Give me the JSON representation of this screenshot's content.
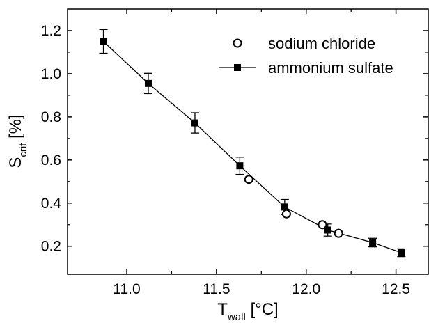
{
  "chart_data": {
    "type": "scatter",
    "xlabel": {
      "main": "T",
      "sub": "wall",
      "unit": " [°C]"
    },
    "ylabel": {
      "main": "S",
      "sub": "crit",
      "unit": " [%]"
    },
    "xlim": [
      10.67,
      12.68
    ],
    "ylim": [
      0.07,
      1.3
    ],
    "x_ticks": [
      {
        "value": 11.0,
        "label": "11.0"
      },
      {
        "value": 11.5,
        "label": "11.5"
      },
      {
        "value": 12.0,
        "label": "12.0"
      },
      {
        "value": 12.5,
        "label": "12.5"
      }
    ],
    "y_ticks": [
      {
        "value": 0.2,
        "label": "0.2"
      },
      {
        "value": 0.4,
        "label": "0.4"
      },
      {
        "value": 0.6,
        "label": "0.6"
      },
      {
        "value": 0.8,
        "label": "0.8"
      },
      {
        "value": 1.0,
        "label": "1.0"
      },
      {
        "value": 1.2,
        "label": "1.2"
      }
    ],
    "grid": false,
    "legend_position": "top-right",
    "series": [
      {
        "name": "sodium chloride",
        "marker": "open-circle",
        "line": false,
        "color": "#000000",
        "x": [
          11.68,
          11.89,
          12.09,
          12.18
        ],
        "y": [
          0.51,
          0.35,
          0.3,
          0.26
        ]
      },
      {
        "name": "ammonium sulfate",
        "marker": "filled-square",
        "line": true,
        "color": "#000000",
        "x": [
          10.87,
          11.12,
          11.38,
          11.63,
          11.88,
          12.12,
          12.37,
          12.53
        ],
        "y": [
          1.15,
          0.955,
          0.772,
          0.573,
          0.382,
          0.275,
          0.217,
          0.17
        ],
        "error": [
          0.055,
          0.047,
          0.047,
          0.04,
          0.035,
          0.028,
          0.02,
          0.018
        ]
      }
    ]
  }
}
